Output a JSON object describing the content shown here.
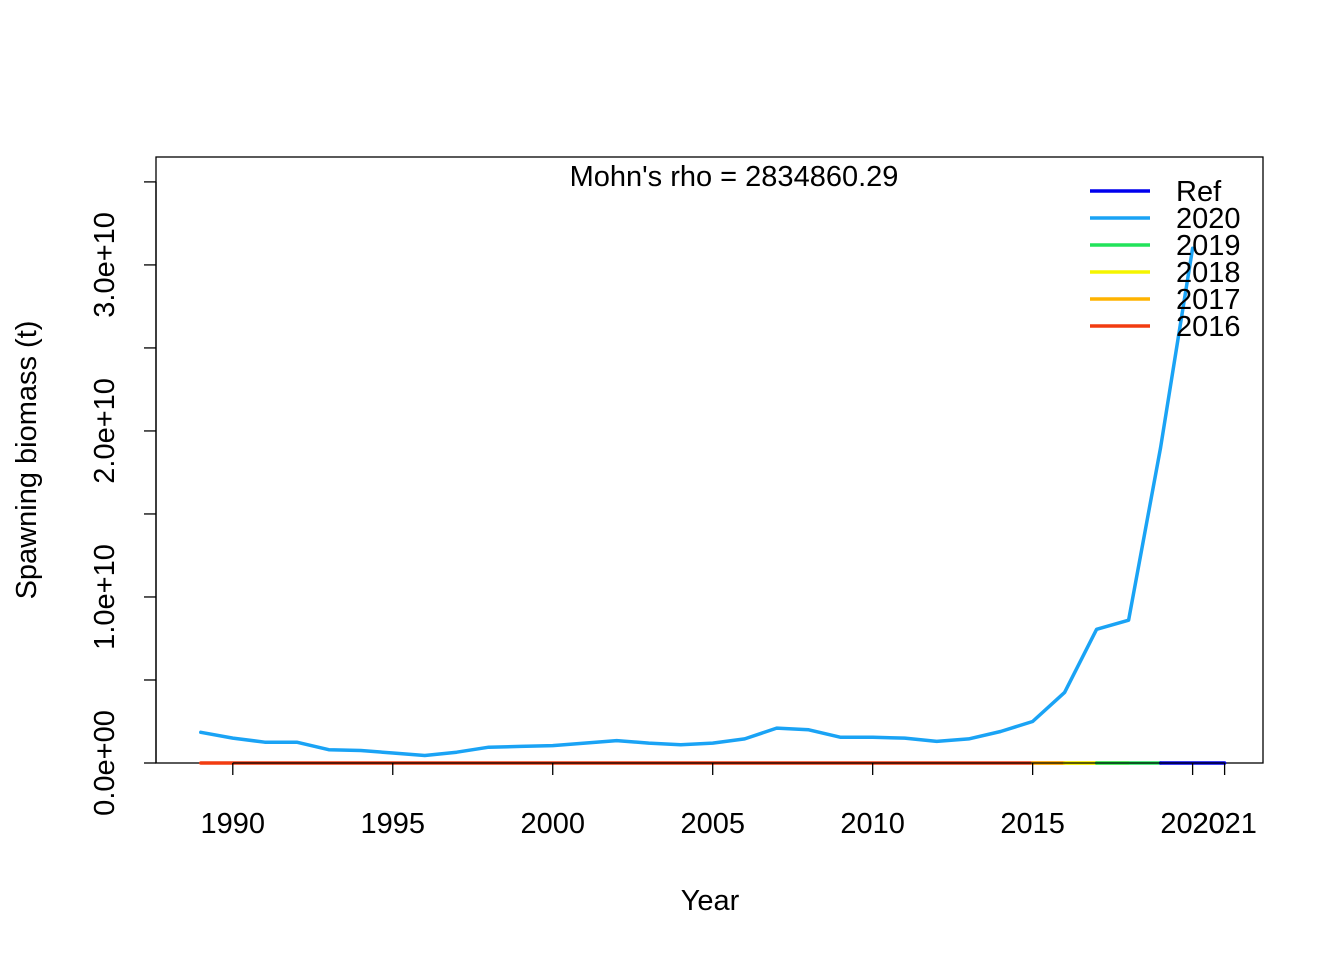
{
  "chart_data": {
    "type": "line",
    "title": "",
    "annotation": "Mohn's rho = 2834860.29",
    "xlabel": "Year",
    "ylabel": "Spawning biomass (t)",
    "xlim": [
      1987.6,
      2022.2
    ],
    "ylim": [
      0,
      36500000000.0
    ],
    "x_ticks": [
      1990,
      1995,
      2000,
      2005,
      2010,
      2015,
      2020,
      2021
    ],
    "x_tick_labels": [
      "1990",
      "1995",
      "2000",
      "2005",
      "2010",
      "2015",
      "2020",
      "2021"
    ],
    "y_ticks": [
      0,
      5000000000.0,
      10000000000.0,
      15000000000.0,
      20000000000.0,
      25000000000.0,
      30000000000.0,
      35000000000.0
    ],
    "y_tick_labels": [
      "0.0e+00",
      "",
      "1.0e+10",
      "",
      "2.0e+10",
      "",
      "3.0e+10",
      ""
    ],
    "legend_position": "top-right",
    "grid": false,
    "series": [
      {
        "name": "Ref",
        "color": "#0000ee",
        "x": [
          2019,
          2020,
          2021
        ],
        "y": [
          100000,
          100000,
          100000
        ]
      },
      {
        "name": "2020",
        "color": "#1aa3f5",
        "x": [
          1989,
          1990,
          1991,
          1992,
          1993,
          1994,
          1995,
          1996,
          1997,
          1998,
          1999,
          2000,
          2001,
          2002,
          2003,
          2004,
          2005,
          2006,
          2007,
          2008,
          2009,
          2010,
          2011,
          2012,
          2013,
          2014,
          2015,
          2016,
          2017,
          2018,
          2019,
          2020
        ],
        "y": [
          1850000000.0,
          1500000000.0,
          1250000000.0,
          1250000000.0,
          800000000.0,
          750000000.0,
          600000000.0,
          450000000.0,
          650000000.0,
          950000000.0,
          1000000000.0,
          1050000000.0,
          1200000000.0,
          1350000000.0,
          1200000000.0,
          1100000000.0,
          1200000000.0,
          1450000000.0,
          2100000000.0,
          2000000000.0,
          1550000000.0,
          1550000000.0,
          1500000000.0,
          1300000000.0,
          1450000000.0,
          1900000000.0,
          2500000000.0,
          4250000000.0,
          8050000000.0,
          8600000000.0,
          19000000000.0,
          31000000000.0
        ]
      },
      {
        "name": "2019",
        "color": "#22e35a",
        "x": [
          2017,
          2018,
          2019
        ],
        "y": [
          100000,
          100000,
          100000
        ]
      },
      {
        "name": "2018",
        "color": "#f5f500",
        "x": [
          2016,
          2017,
          2018
        ],
        "y": [
          100000,
          100000,
          100000
        ]
      },
      {
        "name": "2017",
        "color": "#ffb300",
        "x": [
          2015,
          2016,
          2017
        ],
        "y": [
          100000,
          100000,
          100000
        ]
      },
      {
        "name": "2016",
        "color": "#f23c10",
        "x": [
          1989,
          1995,
          2000,
          2005,
          2010,
          2015,
          2016
        ],
        "y": [
          100000,
          100000,
          100000,
          100000,
          100000,
          100000,
          100000
        ]
      }
    ]
  }
}
